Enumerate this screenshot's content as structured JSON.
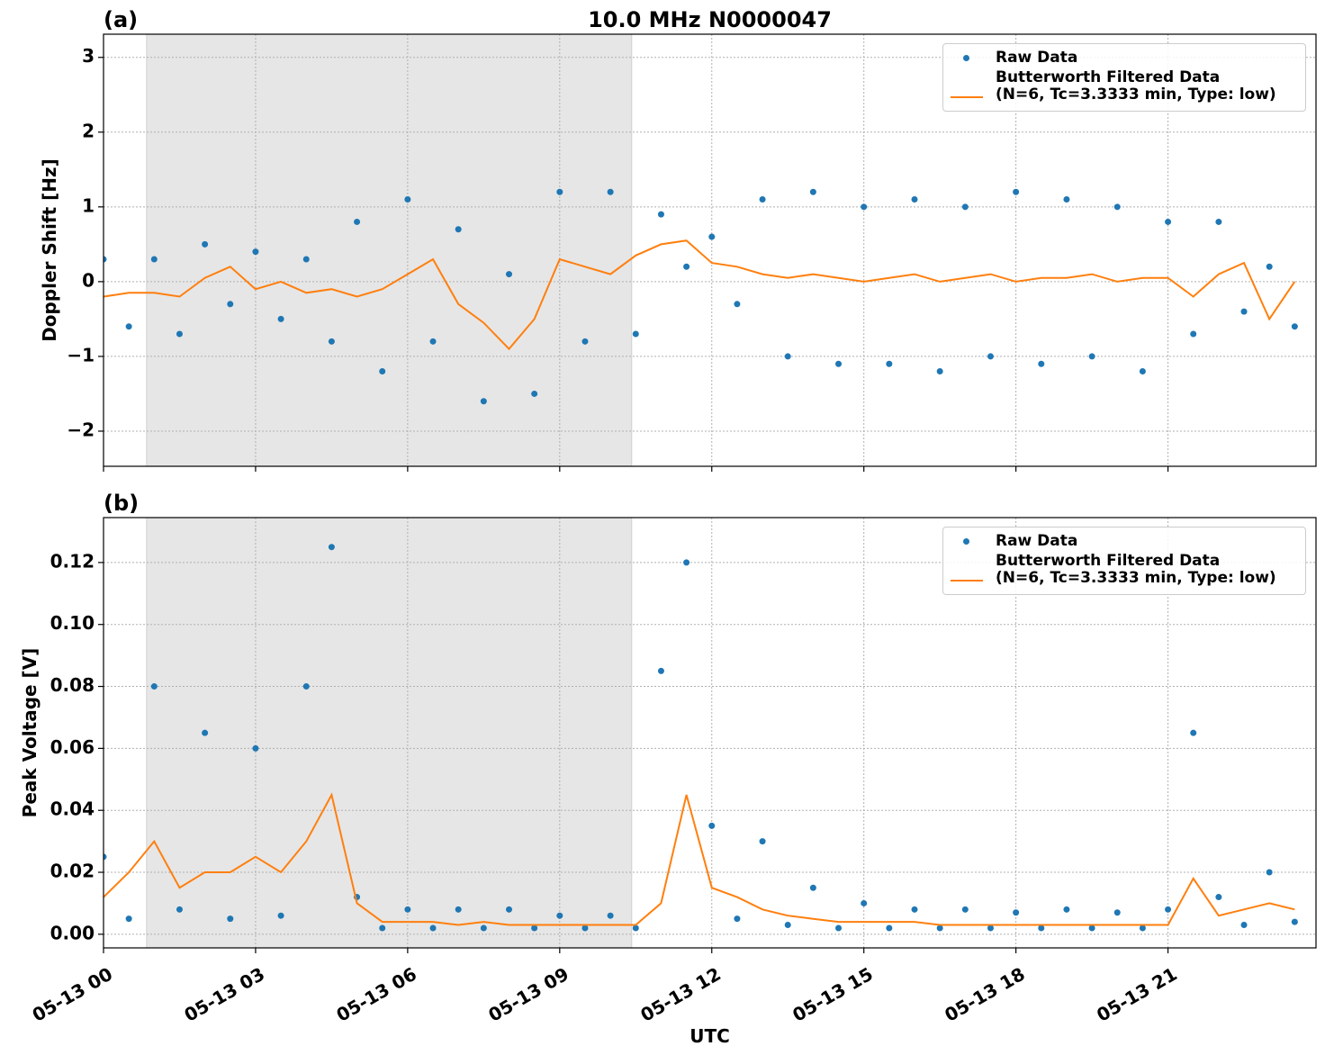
{
  "chart_data": [
    {
      "type": "line",
      "panel_label": "(a)",
      "title": "10.0 MHz N0000047",
      "ylabel": "Doppler Shift [Hz]",
      "x": [
        0,
        0.5,
        1,
        1.5,
        2,
        2.5,
        3,
        3.5,
        4,
        4.5,
        5,
        5.5,
        6,
        6.5,
        7,
        7.5,
        8,
        8.5,
        9,
        9.5,
        10,
        10.5,
        11,
        11.5,
        12,
        12.5,
        13,
        13.5,
        14,
        14.5,
        15,
        15.5,
        16,
        16.5,
        17,
        17.5,
        18,
        18.5,
        19,
        19.5,
        20,
        20.5,
        21,
        21.5,
        22,
        22.5,
        23,
        23.5
      ],
      "series": [
        {
          "name": "Raw Data",
          "style": "dots",
          "color": "#1f77b4",
          "values": [
            0.3,
            -0.6,
            0.3,
            -0.7,
            0.5,
            -0.3,
            0.4,
            -0.5,
            0.3,
            -0.8,
            0.8,
            -1.2,
            1.1,
            -0.8,
            0.7,
            -1.6,
            0.1,
            -1.5,
            1.2,
            -0.8,
            1.2,
            -0.7,
            0.9,
            0.2,
            0.6,
            -0.3,
            1.1,
            -1.0,
            1.2,
            -1.1,
            1.0,
            -1.1,
            1.1,
            -1.2,
            1.0,
            -1.0,
            1.2,
            -1.1,
            1.1,
            -1.0,
            1.0,
            -1.2,
            0.8,
            -0.7,
            0.8,
            -0.4,
            0.2,
            -0.6
          ]
        },
        {
          "name": "Butterworth Filtered Data\n(N=6, Tc=3.3333 min, Type: low)",
          "style": "line",
          "color": "#ff7f0e",
          "values": [
            -0.2,
            -0.15,
            -0.15,
            -0.2,
            0.05,
            0.2,
            -0.1,
            0.0,
            -0.15,
            -0.1,
            -0.2,
            -0.1,
            0.1,
            0.3,
            -0.3,
            -0.55,
            -0.9,
            -0.5,
            0.3,
            0.2,
            0.1,
            0.35,
            0.5,
            0.55,
            0.25,
            0.2,
            0.1,
            0.05,
            0.1,
            0.05,
            0.0,
            0.05,
            0.1,
            0.0,
            0.05,
            0.1,
            0.0,
            0.05,
            0.05,
            0.1,
            0.0,
            0.05,
            0.05,
            -0.2,
            0.1,
            0.25,
            -0.5,
            0.0
          ]
        }
      ],
      "xlim": [
        0,
        23.92
      ],
      "ylim": [
        -2.47,
        3.31
      ],
      "yticks": [
        {
          "value": -2,
          "label": "−2"
        },
        {
          "value": -1,
          "label": "−1"
        },
        0,
        1,
        2,
        3
      ],
      "grid": true,
      "shaded_span": [
        0.85,
        10.42
      ],
      "legend": "upper right"
    },
    {
      "type": "line",
      "panel_label": "(b)",
      "ylabel": "Peak Voltage [V]",
      "xlabel": "UTC",
      "x": [
        0,
        0.5,
        1,
        1.5,
        2,
        2.5,
        3,
        3.5,
        4,
        4.5,
        5,
        5.5,
        6,
        6.5,
        7,
        7.5,
        8,
        8.5,
        9,
        9.5,
        10,
        10.5,
        11,
        11.5,
        12,
        12.5,
        13,
        13.5,
        14,
        14.5,
        15,
        15.5,
        16,
        16.5,
        17,
        17.5,
        18,
        18.5,
        19,
        19.5,
        20,
        20.5,
        21,
        21.5,
        22,
        22.5,
        23,
        23.5
      ],
      "series": [
        {
          "name": "Raw Data",
          "style": "dots",
          "color": "#1f77b4",
          "values": [
            0.025,
            0.005,
            0.08,
            0.008,
            0.065,
            0.005,
            0.06,
            0.006,
            0.08,
            0.125,
            0.012,
            0.002,
            0.008,
            0.002,
            0.008,
            0.002,
            0.008,
            0.002,
            0.006,
            0.002,
            0.006,
            0.002,
            0.085,
            0.12,
            0.035,
            0.005,
            0.03,
            0.003,
            0.015,
            0.002,
            0.01,
            0.002,
            0.008,
            0.002,
            0.008,
            0.002,
            0.007,
            0.002,
            0.008,
            0.002,
            0.007,
            0.002,
            0.008,
            0.065,
            0.012,
            0.003,
            0.02,
            0.004
          ]
        },
        {
          "name": "Butterworth Filtered Data\n(N=6, Tc=3.3333 min, Type: low)",
          "style": "line",
          "color": "#ff7f0e",
          "values": [
            0.012,
            0.02,
            0.03,
            0.015,
            0.02,
            0.02,
            0.025,
            0.02,
            0.03,
            0.045,
            0.01,
            0.004,
            0.004,
            0.004,
            0.003,
            0.004,
            0.003,
            0.003,
            0.003,
            0.003,
            0.003,
            0.003,
            0.01,
            0.045,
            0.015,
            0.012,
            0.008,
            0.006,
            0.005,
            0.004,
            0.004,
            0.004,
            0.004,
            0.003,
            0.003,
            0.003,
            0.003,
            0.003,
            0.003,
            0.003,
            0.003,
            0.003,
            0.003,
            0.018,
            0.006,
            0.008,
            0.01,
            0.008
          ]
        }
      ],
      "xlim": [
        0,
        23.92
      ],
      "ylim": [
        -0.0044,
        0.1345
      ],
      "xticks": [
        {
          "value": 0,
          "label": "05-13 00"
        },
        {
          "value": 3,
          "label": "05-13 03"
        },
        {
          "value": 6,
          "label": "05-13 06"
        },
        {
          "value": 9,
          "label": "05-13 09"
        },
        {
          "value": 12,
          "label": "05-13 12"
        },
        {
          "value": 15,
          "label": "05-13 15"
        },
        {
          "value": 18,
          "label": "05-13 18"
        },
        {
          "value": 21,
          "label": "05-13 21"
        }
      ],
      "yticks": [
        {
          "value": 0,
          "label": "0.00"
        },
        {
          "value": 0.02,
          "label": "0.02"
        },
        {
          "value": 0.04,
          "label": "0.04"
        },
        {
          "value": 0.06,
          "label": "0.06"
        },
        {
          "value": 0.08,
          "label": "0.08"
        },
        {
          "value": 0.1,
          "label": "0.10"
        },
        {
          "value": 0.12,
          "label": "0.12"
        }
      ],
      "grid": true,
      "shaded_span": [
        0.85,
        10.42
      ],
      "legend": "upper right"
    }
  ]
}
